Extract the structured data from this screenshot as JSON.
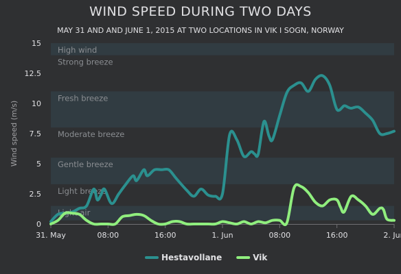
{
  "chart_data": {
    "type": "line",
    "title": "WIND SPEED DURING TWO DAYS",
    "subtitle": "MAY 31 AND AND JUNE 1, 2015 AT TWO LOCATIONS IN VIK I SOGN, NORWAY",
    "ylabel": "Wind speed (m/s)",
    "xlabel": "",
    "ylim": [
      0,
      15
    ],
    "xlim": [
      0,
      48
    ],
    "y_ticks": [
      {
        "value": 0,
        "label": "0"
      },
      {
        "value": 2.5,
        "label": "2.5"
      },
      {
        "value": 5,
        "label": "5"
      },
      {
        "value": 7.5,
        "label": "7.5"
      },
      {
        "value": 10,
        "label": "10"
      },
      {
        "value": 12.5,
        "label": "12.5"
      },
      {
        "value": 15,
        "label": "15"
      }
    ],
    "x_ticks": [
      {
        "value": 0,
        "label": "31. May"
      },
      {
        "value": 8,
        "label": "08:00"
      },
      {
        "value": 16,
        "label": "16:00"
      },
      {
        "value": 24,
        "label": "1. Jun"
      },
      {
        "value": 32,
        "label": "08:00"
      },
      {
        "value": 40,
        "label": "16:00"
      },
      {
        "value": 48,
        "label": "2. Jun"
      }
    ],
    "bands": [
      {
        "label": "Light air",
        "from": 0.3,
        "to": 1.5
      },
      {
        "label": "Light breeze",
        "from": 1.5,
        "to": 3.3
      },
      {
        "label": "Gentle breeze",
        "from": 3.3,
        "to": 5.5
      },
      {
        "label": "Moderate breeze",
        "from": 5.5,
        "to": 8
      },
      {
        "label": "Fresh breeze",
        "from": 8,
        "to": 11
      },
      {
        "label": "Strong breeze",
        "from": 11,
        "to": 14
      },
      {
        "label": "High wind",
        "from": 14,
        "to": 15
      }
    ],
    "legend_position": "bottom-center",
    "series": [
      {
        "name": "Hestavollane",
        "color": "#2b908f",
        "points": [
          [
            0,
            0.2
          ],
          [
            1,
            0.8
          ],
          [
            2,
            0.9
          ],
          [
            3,
            1.0
          ],
          [
            4,
            1.3
          ],
          [
            5,
            1.5
          ],
          [
            6,
            2.9
          ],
          [
            6.5,
            2.0
          ],
          [
            7,
            2.4
          ],
          [
            7.5,
            2.9
          ],
          [
            8.5,
            1.7
          ],
          [
            9.5,
            2.5
          ],
          [
            10.5,
            3.3
          ],
          [
            11.5,
            4.0
          ],
          [
            12,
            3.6
          ],
          [
            13,
            4.5
          ],
          [
            13.5,
            4.0
          ],
          [
            14.5,
            4.5
          ],
          [
            15.5,
            4.5
          ],
          [
            16.5,
            4.5
          ],
          [
            17.5,
            3.8
          ],
          [
            19,
            2.8
          ],
          [
            20,
            2.3
          ],
          [
            21,
            2.9
          ],
          [
            22,
            2.4
          ],
          [
            23,
            2.3
          ],
          [
            24,
            2.5
          ],
          [
            25,
            7.4
          ],
          [
            26,
            7.0
          ],
          [
            27,
            5.6
          ],
          [
            28,
            6.0
          ],
          [
            28.5,
            5.8
          ],
          [
            29,
            5.8
          ],
          [
            29.8,
            8.5
          ],
          [
            30.5,
            7.3
          ],
          [
            31,
            7.0
          ],
          [
            32,
            9.0
          ],
          [
            33,
            10.9
          ],
          [
            34,
            11.5
          ],
          [
            35,
            11.7
          ],
          [
            36,
            11.0
          ],
          [
            37,
            12.0
          ],
          [
            38,
            12.3
          ],
          [
            39,
            11.5
          ],
          [
            40,
            9.5
          ],
          [
            41,
            9.8
          ],
          [
            41.5,
            9.7
          ],
          [
            42,
            9.6
          ],
          [
            43,
            9.7
          ],
          [
            44,
            9.2
          ],
          [
            45,
            8.6
          ],
          [
            46,
            7.5
          ],
          [
            47,
            7.5
          ],
          [
            48,
            7.7
          ]
        ]
      },
      {
        "name": "Vik",
        "color": "#90ee7e",
        "points": [
          [
            0,
            0
          ],
          [
            1,
            0.3
          ],
          [
            2,
            0.9
          ],
          [
            3,
            0.9
          ],
          [
            4,
            0.8
          ],
          [
            5,
            0.3
          ],
          [
            6,
            0
          ],
          [
            7,
            0
          ],
          [
            8,
            0
          ],
          [
            9,
            0
          ],
          [
            10,
            0.6
          ],
          [
            11,
            0.7
          ],
          [
            12,
            0.8
          ],
          [
            13,
            0.7
          ],
          [
            14,
            0.3
          ],
          [
            15,
            0
          ],
          [
            16,
            0
          ],
          [
            17,
            0.2
          ],
          [
            18,
            0.2
          ],
          [
            19,
            0
          ],
          [
            20,
            0
          ],
          [
            21,
            0
          ],
          [
            22,
            0
          ],
          [
            23,
            0
          ],
          [
            24,
            0.2
          ],
          [
            25,
            0.1
          ],
          [
            26,
            0
          ],
          [
            27,
            0.2
          ],
          [
            28,
            0
          ],
          [
            29,
            0.2
          ],
          [
            30,
            0.1
          ],
          [
            31,
            0.3
          ],
          [
            32,
            0.3
          ],
          [
            33,
            0.1
          ],
          [
            34,
            3.0
          ],
          [
            35,
            3.1
          ],
          [
            36,
            2.6
          ],
          [
            37,
            1.8
          ],
          [
            38,
            1.5
          ],
          [
            39,
            2.0
          ],
          [
            40,
            2.0
          ],
          [
            40.5,
            1.4
          ],
          [
            41,
            1.0
          ],
          [
            42,
            2.3
          ],
          [
            43,
            2.0
          ],
          [
            44,
            1.5
          ],
          [
            45,
            0.8
          ],
          [
            46,
            1.3
          ],
          [
            46.5,
            1.2
          ],
          [
            47,
            0.4
          ],
          [
            48,
            0.3
          ]
        ]
      }
    ]
  }
}
